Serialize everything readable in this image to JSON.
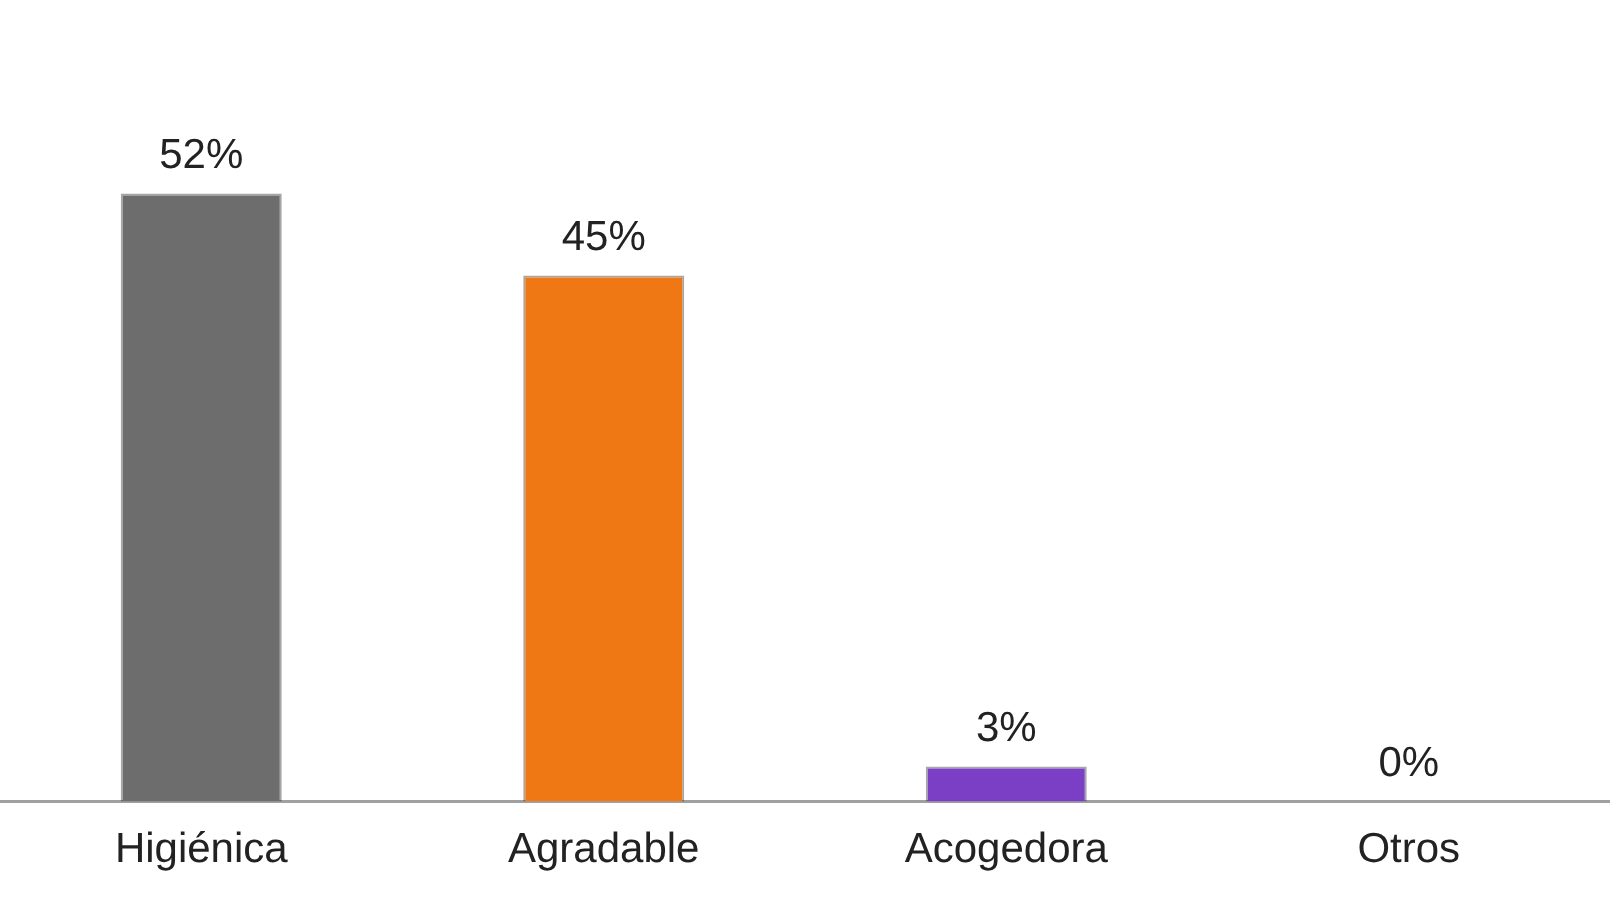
{
  "chart_data": {
    "type": "bar",
    "categories": [
      "Higiénica",
      "Agradable",
      "Acogedora",
      "Otros"
    ],
    "values": [
      52,
      45,
      3,
      0
    ],
    "colors": [
      "#6d6d6d",
      "#f07814",
      "#7a3fc4",
      "#6d6d6d"
    ],
    "value_labels": [
      "52%",
      "45%",
      "3%",
      "0%"
    ],
    "grid": false,
    "legend": false
  }
}
